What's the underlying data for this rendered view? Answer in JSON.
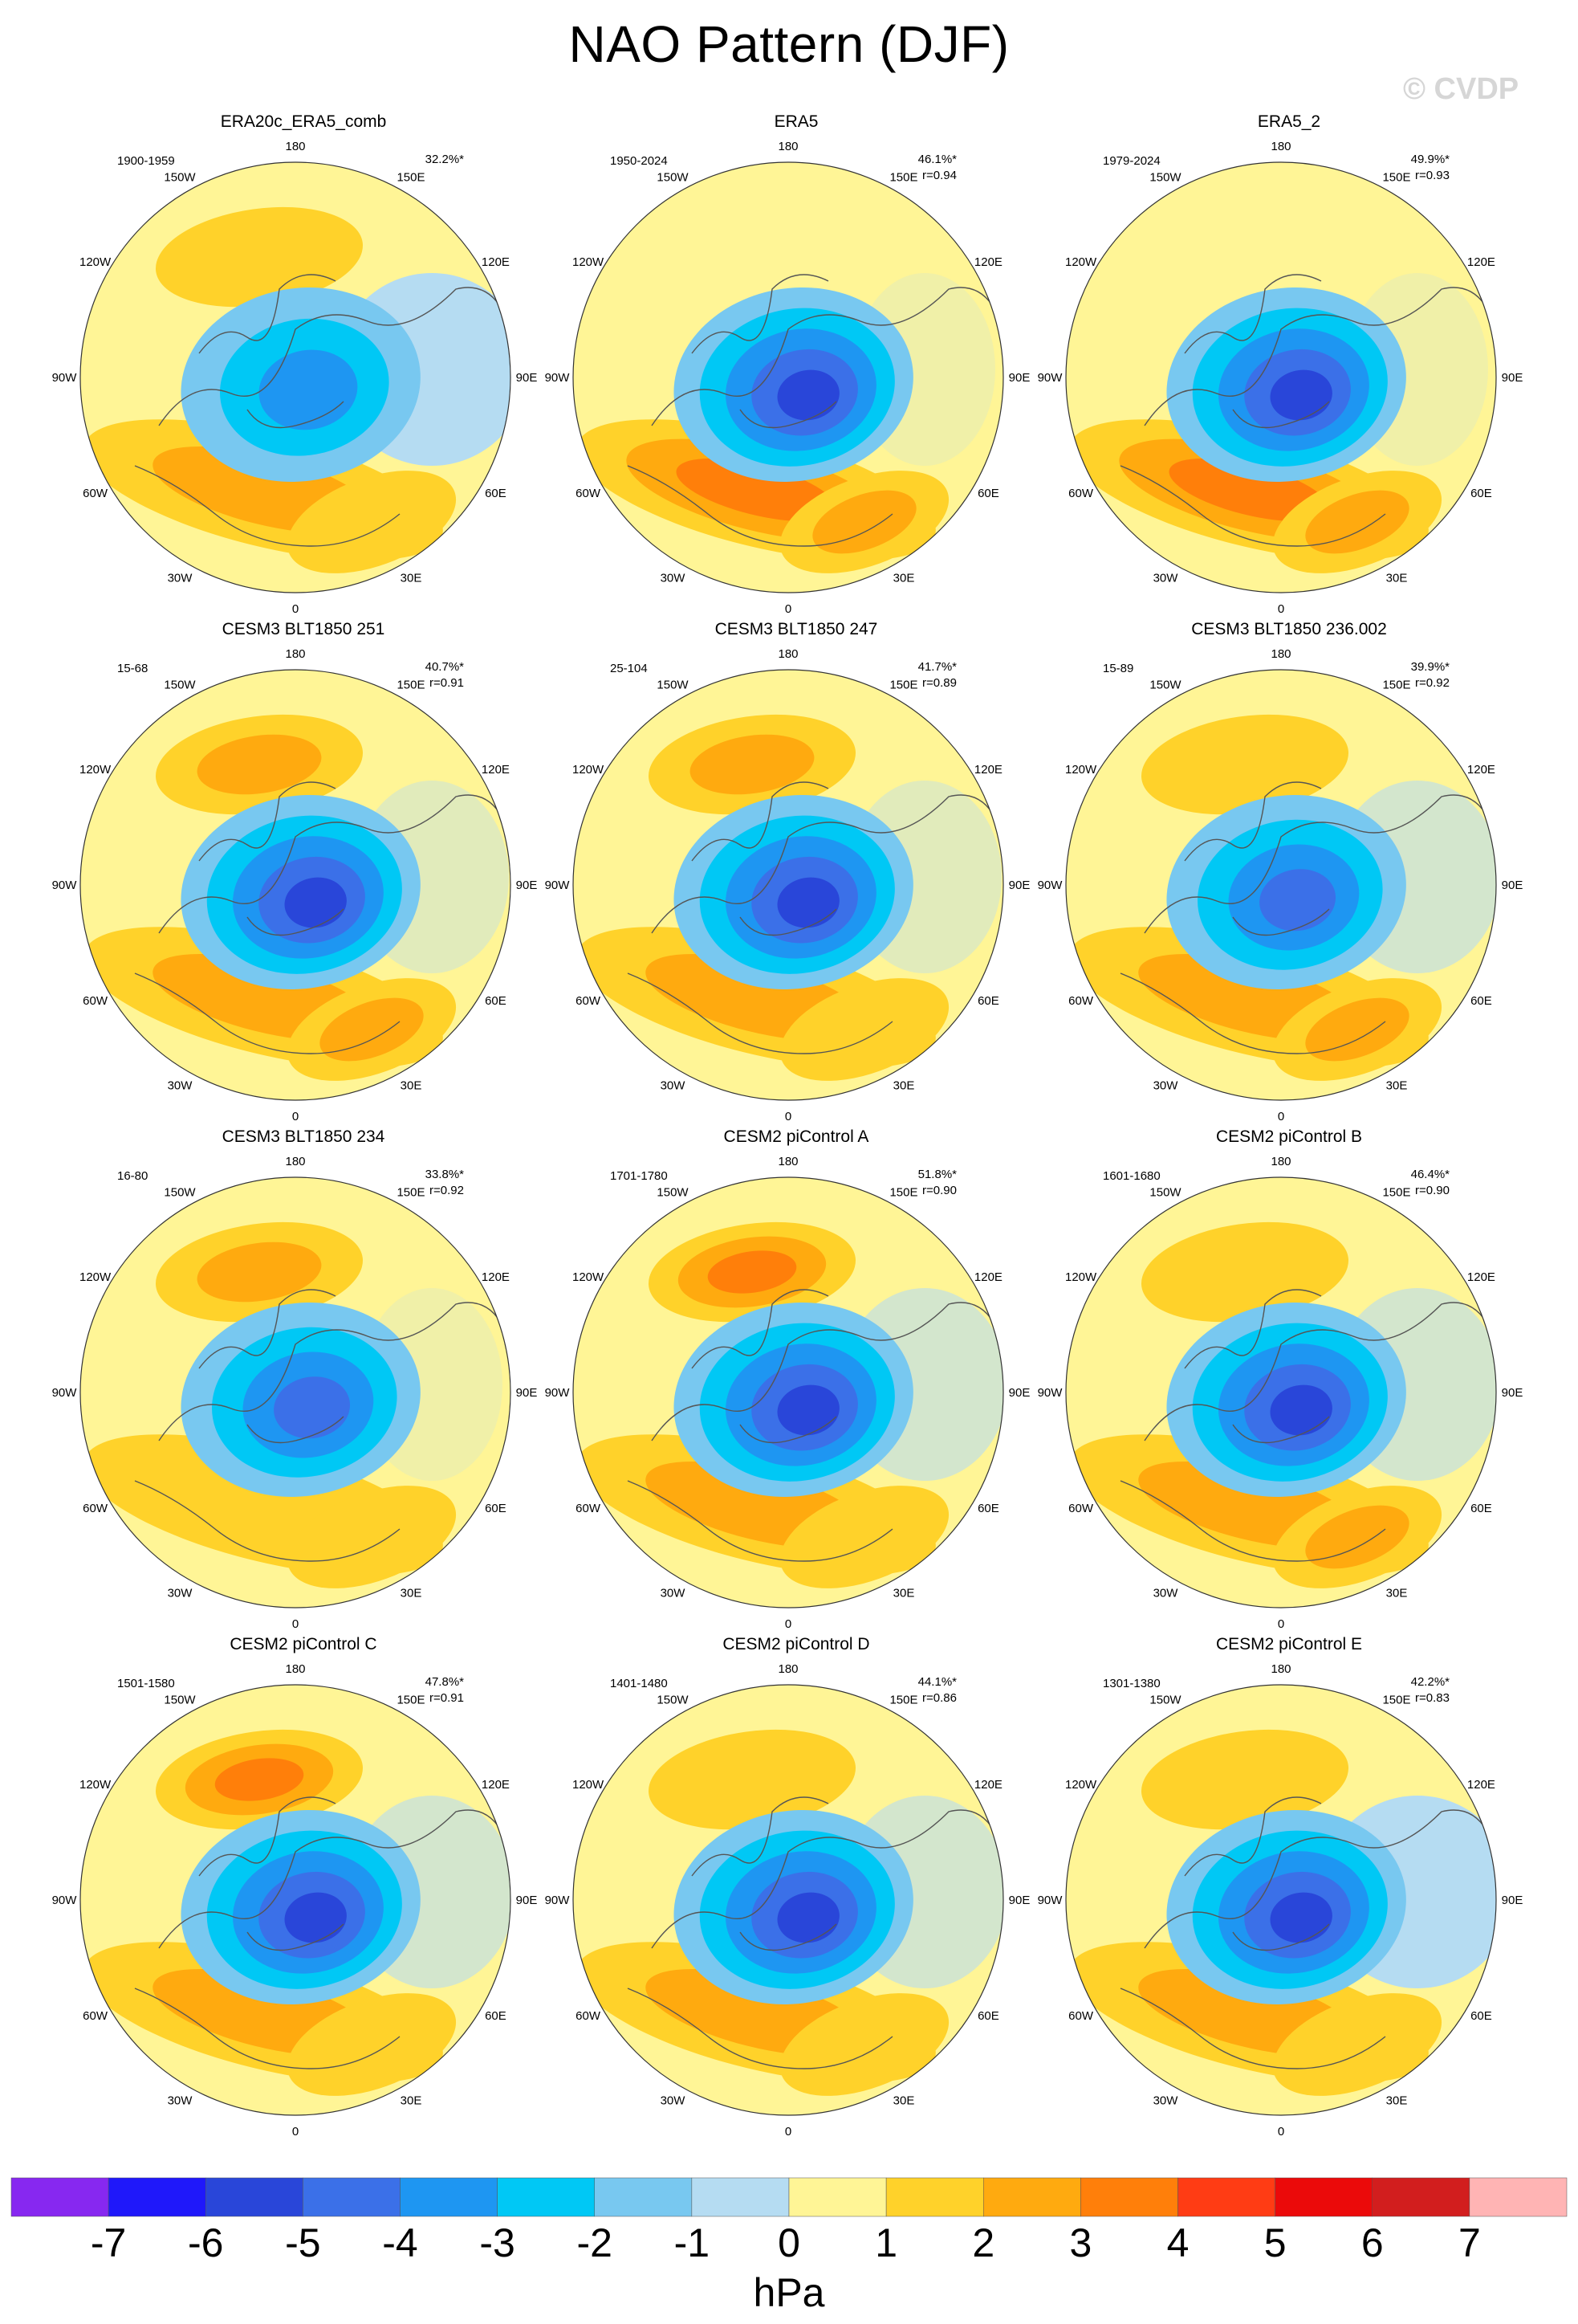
{
  "header": {
    "title": "NAO Pattern (DJF)",
    "watermark": "© CVDP"
  },
  "map_labels": {
    "top": "180",
    "upper_left": "150W",
    "upper_right": "150E",
    "left_upper": "120W",
    "right_upper": "120E",
    "left": "90W",
    "right": "90E",
    "left_lower": "60W",
    "right_lower": "60E",
    "lower_left": "30W",
    "lower_right": "30E",
    "bottom": "0"
  },
  "panels": [
    {
      "title": "ERA20c_ERA5_comb",
      "period": "1900-1959",
      "stat1": "32.2%*",
      "stat2": "",
      "blobs": {
        "pacific": 1.6,
        "atlantic": 2.2,
        "africa": 1.4,
        "center": -3.6,
        "extra_blue": 1.0,
        "row": 0
      }
    },
    {
      "title": "ERA5",
      "period": "1950-2024",
      "stat1": "46.1%*",
      "stat2": "r=0.94",
      "blobs": {
        "pacific": 0.9,
        "atlantic": 3.0,
        "africa": 2.0,
        "center": -5.2,
        "extra_blue": 0.2,
        "row": 0
      }
    },
    {
      "title": "ERA5_2",
      "period": "1979-2024",
      "stat1": "49.9%*",
      "stat2": "r=0.93",
      "blobs": {
        "pacific": 0.9,
        "atlantic": 3.2,
        "africa": 2.0,
        "center": -5.0,
        "extra_blue": 0.2,
        "row": 0
      }
    },
    {
      "title": "CESM3 BLT1850 251",
      "period": "15-68",
      "stat1": "40.7%*",
      "stat2": "r=0.91",
      "blobs": {
        "pacific": 2.2,
        "atlantic": 2.0,
        "africa": 2.0,
        "center": -5.0,
        "extra_blue": 0.4,
        "row": 1
      }
    },
    {
      "title": "CESM3 BLT1850 247",
      "period": "25-104",
      "stat1": "41.7%*",
      "stat2": "r=0.89",
      "blobs": {
        "pacific": 2.4,
        "atlantic": 2.0,
        "africa": 1.8,
        "center": -5.2,
        "extra_blue": 0.4,
        "row": 1
      }
    },
    {
      "title": "CESM3 BLT1850 236.002",
      "period": "15-89",
      "stat1": "39.9%*",
      "stat2": "r=0.92",
      "blobs": {
        "pacific": 1.8,
        "atlantic": 2.8,
        "africa": 2.0,
        "center": -4.8,
        "extra_blue": 0.6,
        "row": 1
      }
    },
    {
      "title": "CESM3 BLT1850 234",
      "period": "16-80",
      "stat1": "33.8%*",
      "stat2": "r=0.92",
      "blobs": {
        "pacific": 2.2,
        "atlantic": 1.8,
        "africa": 1.6,
        "center": -4.6,
        "extra_blue": 0.2,
        "row": 2
      }
    },
    {
      "title": "CESM2 piControl A",
      "period": "1701-1780",
      "stat1": "51.8%*",
      "stat2": "r=0.90",
      "blobs": {
        "pacific": 3.0,
        "atlantic": 2.2,
        "africa": 1.8,
        "center": -5.8,
        "extra_blue": 0.6,
        "row": 2
      }
    },
    {
      "title": "CESM2 piControl B",
      "period": "1601-1680",
      "stat1": "46.4%*",
      "stat2": "r=0.90",
      "blobs": {
        "pacific": 1.4,
        "atlantic": 2.6,
        "africa": 2.0,
        "center": -5.8,
        "extra_blue": 0.6,
        "row": 2
      }
    },
    {
      "title": "CESM2 piControl C",
      "period": "1501-1580",
      "stat1": "47.8%*",
      "stat2": "r=0.91",
      "blobs": {
        "pacific": 3.2,
        "atlantic": 2.0,
        "africa": 1.8,
        "center": -5.2,
        "extra_blue": 0.6,
        "row": 3
      }
    },
    {
      "title": "CESM2 piControl D",
      "period": "1401-1480",
      "stat1": "44.1%*",
      "stat2": "r=0.86",
      "blobs": {
        "pacific": 1.4,
        "atlantic": 2.2,
        "africa": 1.6,
        "center": -5.0,
        "extra_blue": 0.6,
        "row": 3
      }
    },
    {
      "title": "CESM2 piControl E",
      "period": "1301-1380",
      "stat1": "42.2%*",
      "stat2": "r=0.83",
      "blobs": {
        "pacific": 1.8,
        "atlantic": 2.4,
        "africa": 1.6,
        "center": -5.0,
        "extra_blue": 1.0,
        "row": 3
      }
    }
  ],
  "colorbar": {
    "unit": "hPa",
    "ticks": [
      "-7",
      "-6",
      "-5",
      "-4",
      "-3",
      "-2",
      "-1",
      "0",
      "1",
      "2",
      "3",
      "4",
      "5",
      "6",
      "7"
    ],
    "colors": [
      "#8728f0",
      "#1f18fa",
      "#2946d9",
      "#3b70e8",
      "#1e96f2",
      "#00c8f5",
      "#78c8f0",
      "#b5dcf2",
      "#fff596",
      "#ffd22a",
      "#ffaa0f",
      "#ff7f0a",
      "#ff3c14",
      "#eb0a0a",
      "#d21e1e",
      "#ffb4b4"
    ]
  }
}
